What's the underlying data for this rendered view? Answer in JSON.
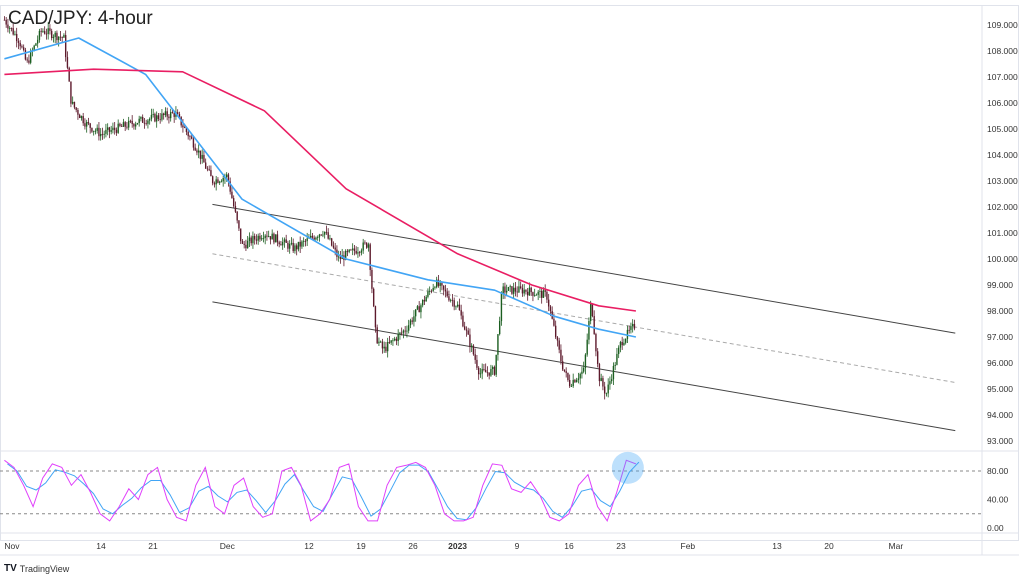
{
  "title": "CAD/JPY: 4-hour",
  "branding": "TradingView",
  "chart_data": {
    "type": "candlestick",
    "title": "CAD/JPY: 4-hour",
    "price_axis": {
      "ticks": [
        "109.000",
        "108.000",
        "107.000",
        "106.000",
        "105.000",
        "104.000",
        "103.000",
        "102.000",
        "101.000",
        "100.000",
        "99.000",
        "98.000",
        "97.000",
        "96.000",
        "95.000",
        "94.000",
        "93.000"
      ],
      "range": [
        92.8,
        109.8
      ]
    },
    "osc_axis": {
      "ticks": [
        "80.00",
        "40.00",
        "0.00"
      ],
      "levels": [
        80,
        20
      ],
      "range": [
        -5,
        105
      ]
    },
    "time_axis": [
      {
        "label": "Nov",
        "date": "2022-11-01"
      },
      {
        "label": "14",
        "date": "2022-11-14"
      },
      {
        "label": "21",
        "date": "2022-11-21"
      },
      {
        "label": "Dec",
        "date": "2022-12-01"
      },
      {
        "label": "12",
        "date": "2022-12-12"
      },
      {
        "label": "19",
        "date": "2022-12-19"
      },
      {
        "label": "26",
        "date": "2022-12-26"
      },
      {
        "label": "2023",
        "date": "2023-01-01",
        "bold": true
      },
      {
        "label": "9",
        "date": "2023-01-09"
      },
      {
        "label": "16",
        "date": "2023-01-16"
      },
      {
        "label": "23",
        "date": "2023-01-23"
      },
      {
        "label": "Feb",
        "date": "2023-02-01"
      },
      {
        "label": "13",
        "date": "2023-02-13"
      },
      {
        "label": "20",
        "date": "2023-02-20"
      },
      {
        "label": "Mar",
        "date": "2023-03-01"
      }
    ],
    "price_path": [
      [
        "2022-11-01",
        109.2
      ],
      [
        "2022-11-03",
        108.4
      ],
      [
        "2022-11-04",
        107.5
      ],
      [
        "2022-11-06",
        108.8
      ],
      [
        "2022-11-09",
        108.5
      ],
      [
        "2022-11-10",
        106.0
      ],
      [
        "2022-11-12",
        105.2
      ],
      [
        "2022-11-14",
        104.8
      ],
      [
        "2022-11-19",
        105.3
      ],
      [
        "2022-11-24",
        105.6
      ],
      [
        "2022-11-27",
        104.2
      ],
      [
        "2022-11-29",
        103.0
      ],
      [
        "2022-12-01",
        103.2
      ],
      [
        "2022-12-03",
        100.5
      ],
      [
        "2022-12-06",
        101.0
      ],
      [
        "2022-12-10",
        100.4
      ],
      [
        "2022-12-14",
        101.1
      ],
      [
        "2022-12-16",
        100.0
      ],
      [
        "2022-12-20",
        100.6
      ],
      [
        "2022-12-21",
        97.0
      ],
      [
        "2022-12-22",
        96.5
      ],
      [
        "2022-12-25",
        97.3
      ],
      [
        "2022-12-29",
        99.1
      ],
      [
        "2023-01-01",
        98.2
      ],
      [
        "2023-01-04",
        95.6
      ],
      [
        "2023-01-06",
        95.7
      ],
      [
        "2023-01-07",
        98.8
      ],
      [
        "2023-01-10",
        98.8
      ],
      [
        "2023-01-13",
        98.6
      ],
      [
        "2023-01-15",
        96.0
      ],
      [
        "2023-01-16",
        95.2
      ],
      [
        "2023-01-18",
        95.7
      ],
      [
        "2023-01-19",
        98.4
      ],
      [
        "2023-01-20",
        95.5
      ],
      [
        "2023-01-21",
        94.8
      ],
      [
        "2023-01-23",
        96.8
      ],
      [
        "2023-01-25",
        97.5
      ]
    ],
    "ma_fast": {
      "color": "#42a5f5",
      "points": [
        [
          "2022-11-01",
          107.7
        ],
        [
          "2022-11-11",
          108.5
        ],
        [
          "2022-11-20",
          107.1
        ],
        [
          "2022-12-03",
          102.3
        ],
        [
          "2022-12-17",
          100.0
        ],
        [
          "2022-12-28",
          99.2
        ],
        [
          "2023-01-06",
          98.8
        ],
        [
          "2023-01-14",
          97.8
        ],
        [
          "2023-01-20",
          97.3
        ],
        [
          "2023-01-25",
          97.0
        ]
      ]
    },
    "ma_slow": {
      "color": "#e91e63",
      "points": [
        [
          "2022-11-01",
          107.1
        ],
        [
          "2022-11-13",
          107.3
        ],
        [
          "2022-11-25",
          107.2
        ],
        [
          "2022-12-06",
          105.7
        ],
        [
          "2022-12-17",
          102.7
        ],
        [
          "2023-01-01",
          100.2
        ],
        [
          "2023-01-11",
          99.0
        ],
        [
          "2023-01-20",
          98.2
        ],
        [
          "2023-01-25",
          98.0
        ]
      ]
    },
    "channel": {
      "upper": [
        [
          "2022-11-29",
          102.1
        ],
        [
          "2023-03-09",
          97.15
        ]
      ],
      "middle": [
        [
          "2022-11-29",
          100.2
        ],
        [
          "2023-03-09",
          95.25
        ]
      ],
      "lower": [
        [
          "2022-11-29",
          98.35
        ],
        [
          "2023-03-09",
          93.4
        ]
      ]
    },
    "stochastic": [
      95,
      85,
      60,
      30,
      70,
      90,
      85,
      60,
      75,
      50,
      20,
      10,
      30,
      55,
      40,
      75,
      85,
      40,
      15,
      10,
      60,
      85,
      30,
      20,
      60,
      70,
      30,
      15,
      20,
      80,
      85,
      60,
      10,
      20,
      40,
      85,
      90,
      30,
      10,
      10,
      60,
      85,
      88,
      92,
      85,
      60,
      20,
      10,
      10,
      15,
      60,
      90,
      88,
      55,
      50,
      65,
      45,
      15,
      10,
      20,
      60,
      75,
      30,
      10,
      50,
      95,
      90
    ],
    "colors": {
      "up": "#1b5e20",
      "down": "#5d1a2c",
      "highlight": "#42a5f5"
    }
  }
}
